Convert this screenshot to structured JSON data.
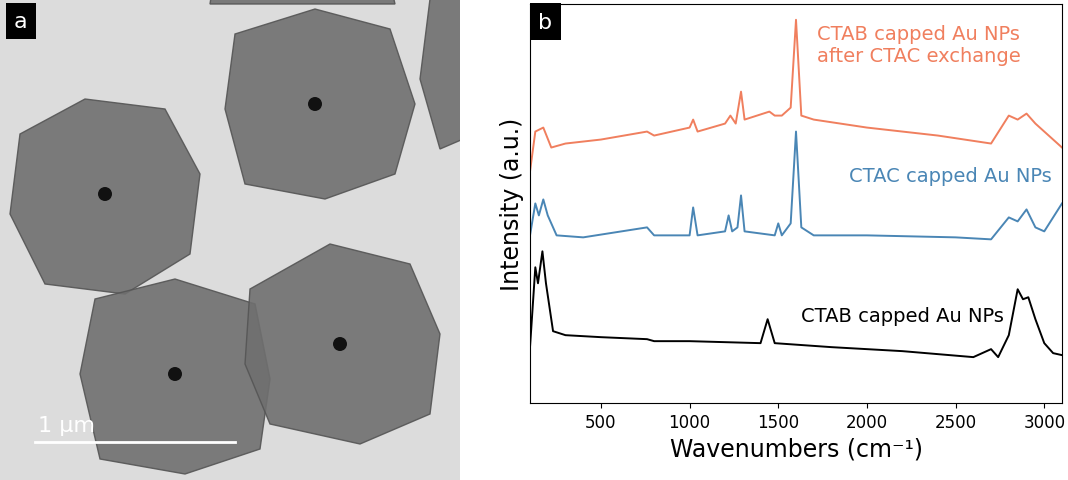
{
  "image_panel": {
    "label": "a",
    "scale_bar": "1 µm"
  },
  "chart_data": {
    "type": "line",
    "panel_label": "b",
    "x_label": "Wavenumbers (cm⁻¹)",
    "y_label": "Intensity (a.u.)",
    "xlim": [
      100,
      3100
    ],
    "xticks": [
      500,
      1000,
      1500,
      2000,
      2500,
      3000
    ],
    "ylim": [
      0,
      100
    ],
    "yticks": [],
    "tick_labels": "x",
    "grid": false,
    "series": [
      {
        "name": "CTAB capped Au NPs\nafter CTAC exchange",
        "color": "#f07f5e",
        "x": [
          100,
          130,
          175,
          220,
          300,
          500,
          760,
          800,
          1000,
          1020,
          1045,
          1200,
          1230,
          1260,
          1290,
          1310,
          1450,
          1480,
          1520,
          1570,
          1600,
          1630,
          1700,
          2000,
          2400,
          2700,
          2800,
          2850,
          2900,
          2950,
          3050,
          3100
        ],
        "values": [
          58,
          68,
          69,
          64,
          65,
          66,
          68,
          67,
          69,
          71,
          68,
          70,
          72,
          70,
          78,
          71,
          73,
          72,
          72,
          74,
          96,
          72,
          71,
          69,
          67,
          65,
          72,
          71,
          72.5,
          70,
          66,
          64
        ]
      },
      {
        "name": "CTAC capped Au NPs",
        "color": "#4a86b5",
        "x": [
          100,
          130,
          150,
          175,
          200,
          250,
          400,
          760,
          800,
          1000,
          1020,
          1045,
          1200,
          1220,
          1240,
          1270,
          1290,
          1310,
          1480,
          1500,
          1520,
          1570,
          1600,
          1630,
          1700,
          2000,
          2500,
          2700,
          2800,
          2850,
          2900,
          2950,
          3000,
          3100
        ],
        "values": [
          42,
          50,
          47,
          51,
          47,
          42,
          41.5,
          44,
          42,
          42,
          49,
          42,
          43,
          47,
          43,
          44,
          52,
          43,
          42,
          45,
          42,
          45,
          68,
          44,
          42,
          42,
          41.5,
          41,
          46.5,
          45.5,
          48.5,
          44,
          43,
          50
        ]
      },
      {
        "name": "CTAB capped Au NPs",
        "color": "#000000",
        "x": [
          100,
          130,
          145,
          170,
          190,
          230,
          300,
          500,
          760,
          800,
          1000,
          1400,
          1440,
          1480,
          1800,
          2200,
          2600,
          2700,
          2740,
          2800,
          2850,
          2880,
          2910,
          2950,
          3000,
          3050,
          3100
        ],
        "values": [
          14,
          34,
          30,
          38,
          30,
          18,
          17,
          16.5,
          16,
          15.5,
          15.5,
          15,
          21,
          15,
          14,
          13,
          11.5,
          13.5,
          11.5,
          17,
          28.5,
          26,
          26.5,
          21,
          15,
          12.5,
          12
        ]
      }
    ]
  }
}
